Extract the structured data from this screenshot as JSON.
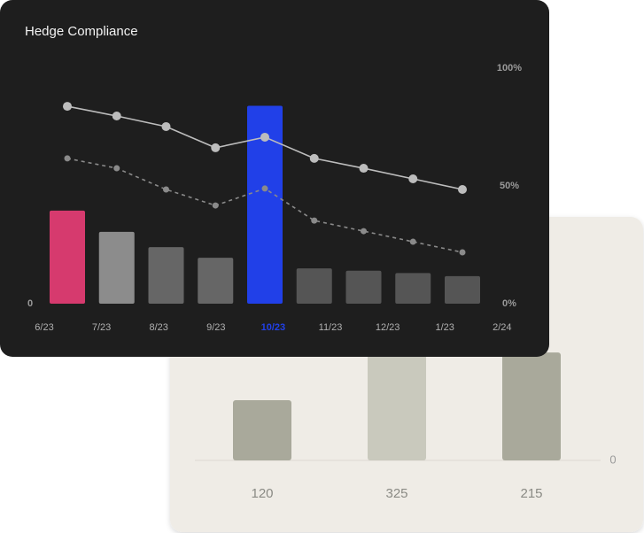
{
  "chart_data": [
    {
      "type": "combo",
      "title": "Hedge Compliance",
      "categories": [
        "6/23",
        "7/23",
        "8/23",
        "9/23",
        "10/23",
        "11/23",
        "12/23",
        "1/23",
        "2/24"
      ],
      "values": [
        39.5,
        30.5,
        24,
        19.5,
        84,
        15,
        14,
        13,
        11.7
      ],
      "colors": [
        "#d63a6e",
        "#8c8c8c",
        "#666666",
        "#666666",
        "#2140e8",
        "#555555",
        "#555555",
        "#555555",
        "#555555"
      ],
      "highlight": 4,
      "ylim": [
        0,
        100
      ],
      "yticks": [
        0
      ],
      "y2lim": [
        0,
        100
      ],
      "y2ticks": [
        {
          "value": 0,
          "label": "0%"
        },
        {
          "value": 50,
          "label": "50%"
        },
        {
          "value": 100,
          "label": "100%"
        }
      ],
      "series": [
        {
          "color": "#bdbdbd",
          "dash": false,
          "axis": "y2",
          "values": [
            83.8,
            79.7,
            75.2,
            66.2,
            70.7,
            61.7,
            57.5,
            53,
            48.5
          ]
        },
        {
          "color": "#8a8a8a",
          "dash": true,
          "axis": "y2",
          "values": [
            61.7,
            57.5,
            48.5,
            41.7,
            48.9,
            35.3,
            30.8,
            26.3,
            21.8
          ]
        }
      ]
    },
    {
      "type": "bar",
      "values": [
        120,
        325,
        215
      ],
      "colors": [
        "#a9a99b",
        "#c9c9bd",
        "#a9a99b"
      ],
      "ylim": [
        0,
        350
      ],
      "yticks": [
        0
      ]
    }
  ]
}
